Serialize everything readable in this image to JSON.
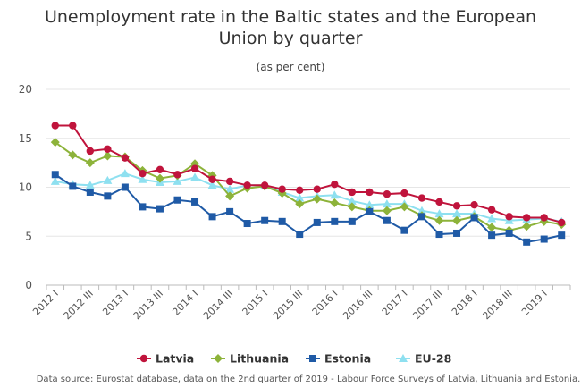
{
  "chart_data": {
    "type": "line",
    "title": "Unemployment rate in the Baltic states and the European Union by quarter",
    "title_lines": [
      "Unemployment rate in the Baltic states and the European",
      "Union by quarter"
    ],
    "subtitle": "(as per cent)",
    "xlabel": "",
    "ylabel": "",
    "ylim": [
      0,
      20
    ],
    "yticks": [
      0,
      5,
      10,
      15,
      20
    ],
    "grid": true,
    "legend_position": "bottom",
    "categories": [
      "2012 I",
      "2012 II",
      "2012 III",
      "2012 IV",
      "2013 I",
      "2013 II",
      "2013 III",
      "2013 IV",
      "2014 I",
      "2014 II",
      "2014 III",
      "2014 IV",
      "2015 I",
      "2015 II",
      "2015 III",
      "2015 IV",
      "2016 I",
      "2016 II",
      "2016 III",
      "2016 IV",
      "2017 I",
      "2017 II",
      "2017 III",
      "2017 IV",
      "2018 I",
      "2018 II",
      "2018 III",
      "2018 IV",
      "2019 I",
      "2019 II"
    ],
    "tick_labels": [
      "2012 I",
      "2012 III",
      "2013 I",
      "2013 III",
      "2014 I",
      "2014 III",
      "2015 I",
      "2015 III",
      "2016 I",
      "2016 III",
      "2017 I",
      "2017 III",
      "2018 I",
      "2018 III",
      "2019 I"
    ],
    "series": [
      {
        "name": "Latvia",
        "color": "#c0143c",
        "marker": "circle",
        "values": [
          16.3,
          16.3,
          13.7,
          13.9,
          13.0,
          11.4,
          11.8,
          11.3,
          11.9,
          10.8,
          10.6,
          10.2,
          10.2,
          9.8,
          9.7,
          9.8,
          10.3,
          9.5,
          9.5,
          9.3,
          9.4,
          8.9,
          8.5,
          8.1,
          8.2,
          7.7,
          7.0,
          6.9,
          6.9,
          6.4
        ]
      },
      {
        "name": "Lithuania",
        "color": "#8db33a",
        "marker": "diamond",
        "values": [
          14.6,
          13.3,
          12.5,
          13.2,
          13.1,
          11.7,
          10.9,
          11.2,
          12.4,
          11.2,
          9.1,
          9.9,
          10.1,
          9.4,
          8.3,
          8.8,
          8.4,
          8.0,
          7.6,
          7.6,
          8.0,
          7.1,
          6.6,
          6.6,
          7.0,
          5.9,
          5.6,
          6.0,
          6.5,
          6.2
        ]
      },
      {
        "name": "Estonia",
        "color": "#1f5aa6",
        "marker": "square",
        "values": [
          11.3,
          10.1,
          9.5,
          9.1,
          10.0,
          8.0,
          7.8,
          8.7,
          8.5,
          7.0,
          7.5,
          6.3,
          6.6,
          6.5,
          5.2,
          6.4,
          6.5,
          6.5,
          7.5,
          6.6,
          5.6,
          7.0,
          5.2,
          5.3,
          6.9,
          5.1,
          5.3,
          4.4,
          4.7,
          5.1
        ]
      },
      {
        "name": "EU-28",
        "color": "#8ee0f0",
        "marker": "triangle",
        "values": [
          10.6,
          10.3,
          10.2,
          10.7,
          11.4,
          10.8,
          10.5,
          10.6,
          11.0,
          10.2,
          9.8,
          10.2,
          10.2,
          9.5,
          8.9,
          9.1,
          9.2,
          8.6,
          8.2,
          8.3,
          8.3,
          7.6,
          7.3,
          7.3,
          7.3,
          6.8,
          6.6,
          6.7,
          6.8,
          6.5
        ]
      }
    ]
  },
  "source_text": "Data source: Eurostat database, data on the 2nd quarter of 2019 - Labour Force Surveys of Latvia, Lithuania and Estonia."
}
